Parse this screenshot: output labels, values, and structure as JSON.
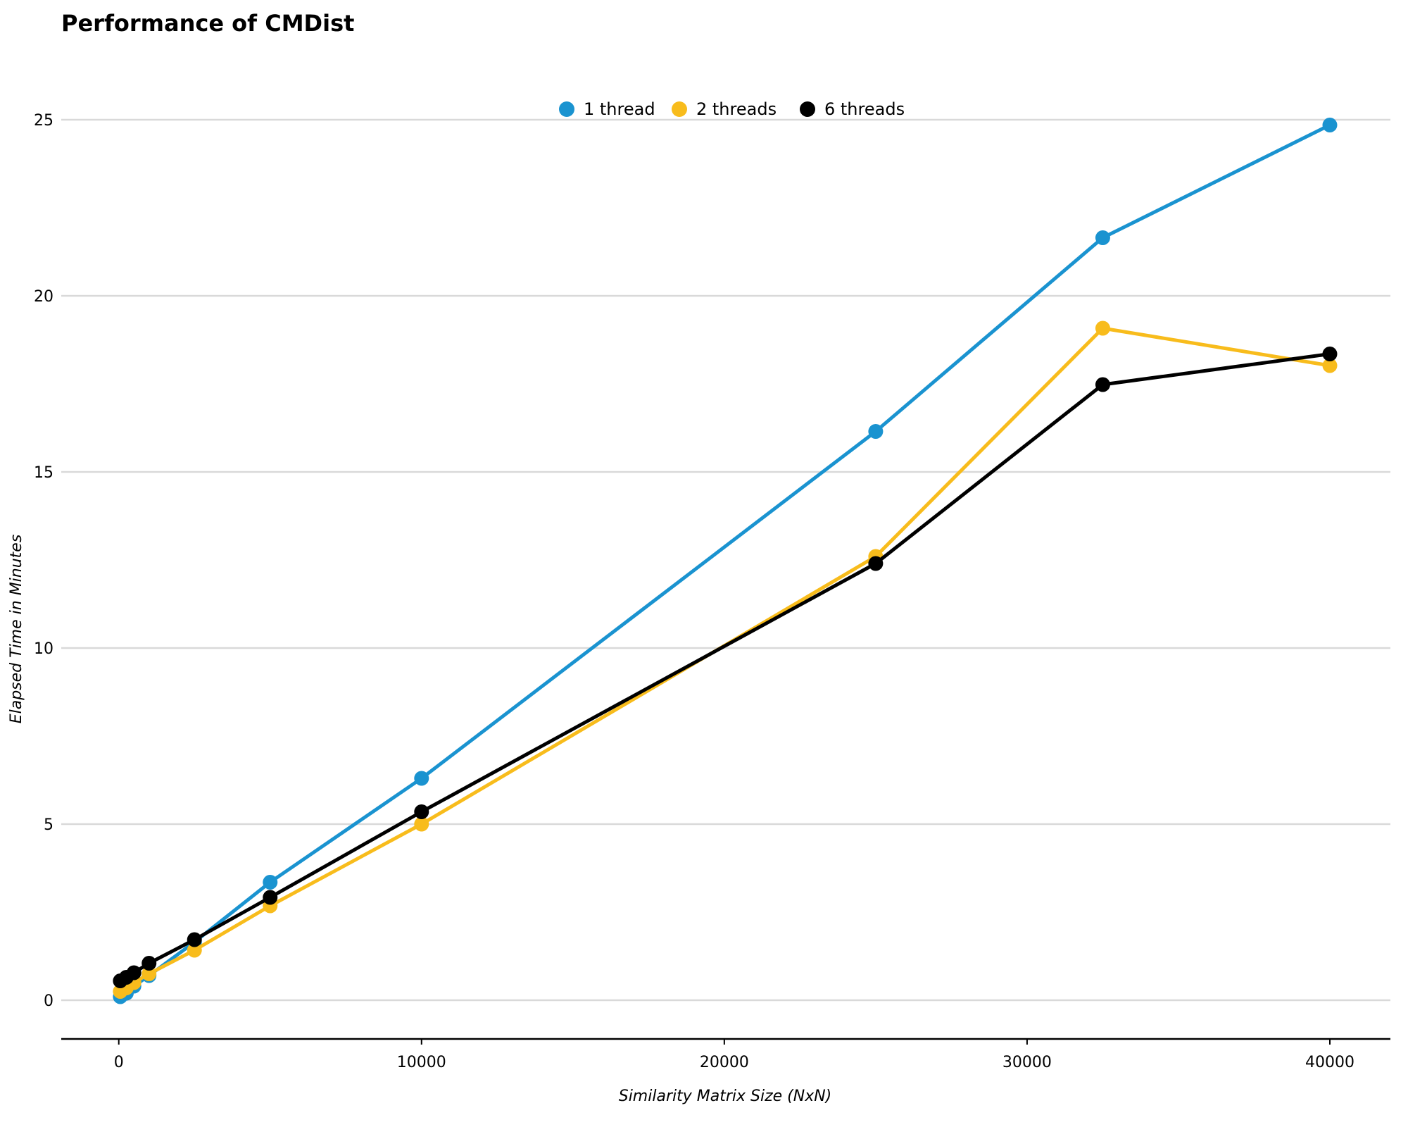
{
  "chart_data": {
    "type": "line",
    "title": "Performance of CMDist",
    "xlabel": "Similarity Matrix Size (NxN)",
    "ylabel": "Elapsed Time in Minutes",
    "xlim": [
      -1900,
      42000
    ],
    "ylim": [
      -1.1,
      27
    ],
    "xticks": [
      0,
      10000,
      20000,
      30000,
      40000
    ],
    "yticks": [
      0,
      5,
      10,
      15,
      20,
      25
    ],
    "grid": "horizontal",
    "legend_position": "top-center",
    "series": [
      {
        "name": "1 thread",
        "color": "#1a93d0",
        "x": [
          50,
          250,
          500,
          1000,
          2500,
          5000,
          10000,
          25000,
          32500,
          40000
        ],
        "y": [
          0.1,
          0.2,
          0.4,
          0.7,
          1.65,
          3.35,
          6.3,
          16.15,
          21.65,
          24.85
        ]
      },
      {
        "name": "2 threads",
        "color": "#f8bc1c",
        "x": [
          50,
          250,
          500,
          1000,
          2500,
          5000,
          10000,
          25000,
          32500,
          40000
        ],
        "y": [
          0.25,
          0.35,
          0.5,
          0.75,
          1.42,
          2.68,
          5.0,
          12.6,
          19.08,
          18.02
        ]
      },
      {
        "name": "6 threads",
        "color": "#000000",
        "x": [
          50,
          250,
          500,
          1000,
          2500,
          5000,
          10000,
          25000,
          32500,
          40000
        ],
        "y": [
          0.55,
          0.65,
          0.78,
          1.05,
          1.72,
          2.92,
          5.35,
          12.4,
          17.48,
          18.35
        ]
      }
    ]
  }
}
